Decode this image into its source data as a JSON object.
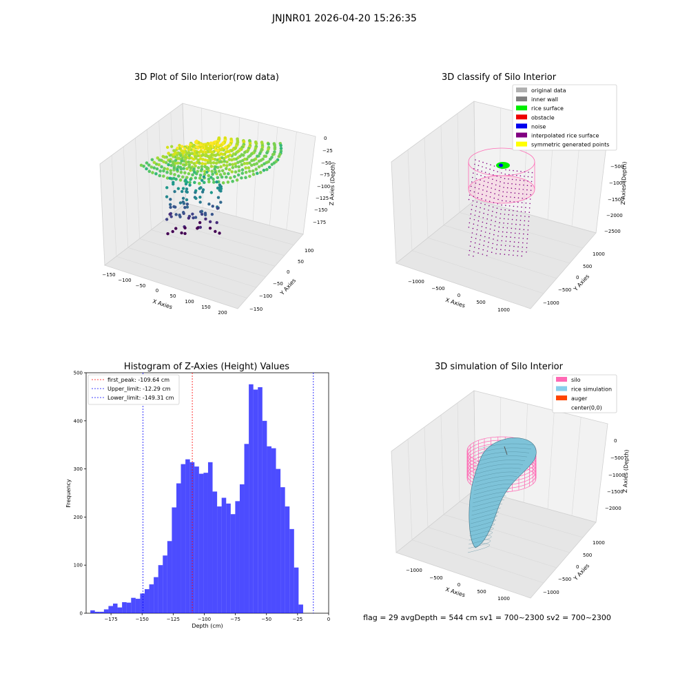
{
  "suptitle": "JNJNR01 2026-04-20 15:26:35",
  "footer": "flag = 29  avgDepth = 544 cm  sv1 = 700~2300  sv2 = 700~2300",
  "panel1": {
    "title": "3D Plot of Silo Interior(row data)",
    "xlabel": "X Axies",
    "ylabel": "Y Axies",
    "zlabel": "Z Axies (Depth)",
    "xticks": [
      "−150",
      "−100",
      "−50",
      "0",
      "50",
      "100",
      "150",
      "200"
    ],
    "yticks": [
      "−150",
      "−100",
      "−50",
      "0",
      "50",
      "100"
    ],
    "zticks": [
      "0",
      "−25",
      "−50",
      "−75",
      "−100",
      "−125",
      "−150",
      "−175"
    ]
  },
  "panel2": {
    "title": "3D classify of Silo Interior",
    "xlabel": "X Axies",
    "ylabel": "Y Axies",
    "zlabel": "Z Axies (Depth)",
    "xticks": [
      "−1000",
      "−500",
      "0",
      "500",
      "1000"
    ],
    "yticks": [
      "−1000",
      "−500",
      "0",
      "500",
      "1000"
    ],
    "zticks": [
      "−500",
      "−1000",
      "−1500",
      "−2000",
      "−2500"
    ],
    "legend": [
      {
        "label": "original data",
        "color": "#b0b0b0"
      },
      {
        "label": "inner wall",
        "color": "#808080"
      },
      {
        "label": "rice surface",
        "color": "#00ee00"
      },
      {
        "label": "obstacle",
        "color": "#ee0000"
      },
      {
        "label": "noise",
        "color": "#0000ee"
      },
      {
        "label": "interpolated rice surface",
        "color": "#800080"
      },
      {
        "label": "symmetric generated points",
        "color": "#ffff00"
      }
    ]
  },
  "panel4": {
    "title": "3D simulation of Silo Interior",
    "xlabel": "X Axies",
    "ylabel": "Y Axies",
    "zlabel": "Z Axies (Depth)",
    "xticks": [
      "−1000",
      "−500",
      "0",
      "500",
      "1000"
    ],
    "yticks": [
      "−1000",
      "−500",
      "0",
      "500",
      "1000"
    ],
    "zticks": [
      "0",
      "−500",
      "−1000",
      "−1500",
      "−2000"
    ],
    "legend": [
      {
        "label": "silo",
        "color": "#ff69b4"
      },
      {
        "label": "rice simulation",
        "color": "#87ceeb"
      },
      {
        "label": "auger",
        "color": "#ff4500"
      },
      {
        "label": "center(0,0)",
        "color": "#ffffff"
      }
    ]
  },
  "chart_data": {
    "type": "bar",
    "title": "Histogram of Z-Axies (Height) Values",
    "xlabel": "Depth (cm)",
    "ylabel": "Frequency",
    "xlim": [
      -195,
      0
    ],
    "ylim": [
      0,
      500
    ],
    "xticks": [
      -175,
      -150,
      -125,
      -100,
      -75,
      -50,
      -25,
      0
    ],
    "yticks": [
      0,
      100,
      200,
      300,
      400,
      500
    ],
    "bin_start": -191.6,
    "bin_width": 3.64,
    "values": [
      6,
      3,
      3,
      8,
      15,
      20,
      12,
      23,
      22,
      32,
      30,
      41,
      50,
      60,
      75,
      100,
      120,
      150,
      220,
      270,
      310,
      320,
      314,
      305,
      290,
      292,
      314,
      253,
      222,
      240,
      228,
      206,
      233,
      268,
      352,
      476,
      465,
      470,
      400,
      347,
      343,
      300,
      262,
      222,
      175,
      95,
      18
    ],
    "color": "#0000ff",
    "vlines": [
      {
        "label": "first_peak: -109.64 cm",
        "x": -109.64,
        "color": "#ff0000"
      },
      {
        "label": "Upper_limit: -12.29 cm",
        "x": -12.29,
        "color": "#0000ff"
      },
      {
        "label": "Lower_limit: -149.31 cm",
        "x": -149.31,
        "color": "#0000ff"
      }
    ]
  }
}
